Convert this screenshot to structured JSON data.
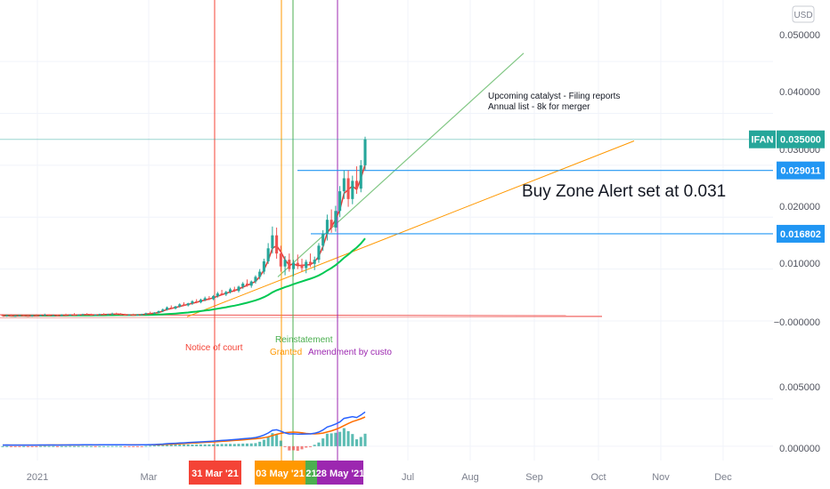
{
  "chart_data": {
    "type": "candlestick",
    "symbol": "IFAN",
    "currency": "USD",
    "ylim": [
      0,
      0.055
    ],
    "y_ticks": [
      "0.050000",
      "0.040000",
      "0.030000",
      "0.020000",
      "0.010000",
      "−0.000000"
    ],
    "x_ticks": [
      "2021",
      "Mar",
      "Jul",
      "Aug",
      "Sep",
      "Oct",
      "Nov",
      "Dec"
    ],
    "last_price": "0.035000",
    "price_lines": [
      {
        "label": "0.029011",
        "value": 0.029011
      },
      {
        "label": "0.016802",
        "value": 0.016802
      }
    ],
    "hidden_label": "0.030000",
    "event_flags": [
      {
        "label": "31 Mar '21",
        "color": "#f44336"
      },
      {
        "label": "03 May '21",
        "color": "#ff9800"
      },
      {
        "label": "21",
        "color": "#4caf50"
      },
      {
        "label": "28 May '21",
        "color": "#9c27b0"
      }
    ],
    "annotations": [
      {
        "text": "Notice of court",
        "color": "#f44336"
      },
      {
        "text": "Reinstatement",
        "color": "#4caf50"
      },
      {
        "text": "Granted",
        "color": "#ff9800"
      },
      {
        "text": "Amendment by custo",
        "color": "#9c27b0"
      }
    ],
    "note_lines": [
      "Upcoming catalyst - Filing reports",
      "Annual list - 8k for merger"
    ],
    "alert_text": "Buy Zone Alert set at 0.031",
    "candles": [
      [
        0.0011,
        0.0013,
        0.0009,
        0.001
      ],
      [
        0.001,
        0.0012,
        0.0008,
        0.0011
      ],
      [
        0.0011,
        0.0013,
        0.0009,
        0.0009
      ],
      [
        0.0009,
        0.0011,
        0.0008,
        0.001
      ],
      [
        0.001,
        0.0012,
        0.0009,
        0.0011
      ],
      [
        0.0011,
        0.0012,
        0.0009,
        0.001
      ],
      [
        0.001,
        0.0011,
        0.0008,
        0.0009
      ],
      [
        0.0009,
        0.0012,
        0.0008,
        0.0011
      ],
      [
        0.0011,
        0.0013,
        0.001,
        0.001
      ],
      [
        0.001,
        0.0012,
        0.0009,
        0.0011
      ],
      [
        0.0011,
        0.0014,
        0.001,
        0.0012
      ],
      [
        0.0012,
        0.0013,
        0.001,
        0.001
      ],
      [
        0.001,
        0.0012,
        0.0009,
        0.0011
      ],
      [
        0.0011,
        0.0012,
        0.0009,
        0.001
      ],
      [
        0.001,
        0.0013,
        0.0009,
        0.0012
      ],
      [
        0.0012,
        0.0014,
        0.001,
        0.0011
      ],
      [
        0.0011,
        0.0013,
        0.001,
        0.0012
      ],
      [
        0.0012,
        0.0015,
        0.0011,
        0.0011
      ],
      [
        0.0011,
        0.0013,
        0.001,
        0.0012
      ],
      [
        0.0012,
        0.0014,
        0.0011,
        0.0013
      ],
      [
        0.0013,
        0.0015,
        0.0011,
        0.0012
      ],
      [
        0.0012,
        0.0014,
        0.001,
        0.0011
      ],
      [
        0.0011,
        0.0013,
        0.001,
        0.0012
      ],
      [
        0.0012,
        0.0014,
        0.0011,
        0.0013
      ],
      [
        0.0013,
        0.0015,
        0.0012,
        0.0012
      ],
      [
        0.0012,
        0.0014,
        0.0011,
        0.0013
      ],
      [
        0.0013,
        0.0016,
        0.0012,
        0.0014
      ],
      [
        0.0014,
        0.0016,
        0.0012,
        0.0013
      ],
      [
        0.0013,
        0.0015,
        0.0012,
        0.0012
      ],
      [
        0.0012,
        0.0014,
        0.0011,
        0.0011
      ],
      [
        0.0011,
        0.0013,
        0.001,
        0.0012
      ],
      [
        0.0012,
        0.0014,
        0.0011,
        0.0011
      ],
      [
        0.0011,
        0.0013,
        0.001,
        0.0012
      ],
      [
        0.0012,
        0.0014,
        0.0011,
        0.0013
      ],
      [
        0.0013,
        0.0016,
        0.0012,
        0.0015
      ],
      [
        0.0015,
        0.0018,
        0.0013,
        0.0014
      ],
      [
        0.0014,
        0.0017,
        0.0013,
        0.0016
      ],
      [
        0.0016,
        0.002,
        0.0015,
        0.0019
      ],
      [
        0.0019,
        0.0024,
        0.0017,
        0.0022
      ],
      [
        0.0022,
        0.0028,
        0.002,
        0.0026
      ],
      [
        0.0026,
        0.003,
        0.0023,
        0.0024
      ],
      [
        0.0024,
        0.0029,
        0.0022,
        0.0028
      ],
      [
        0.0028,
        0.0034,
        0.0026,
        0.0032
      ],
      [
        0.0032,
        0.0036,
        0.0029,
        0.003
      ],
      [
        0.003,
        0.0035,
        0.0028,
        0.0034
      ],
      [
        0.0034,
        0.004,
        0.0031,
        0.0038
      ],
      [
        0.0038,
        0.0042,
        0.0034,
        0.0036
      ],
      [
        0.0036,
        0.0043,
        0.0034,
        0.0041
      ],
      [
        0.0041,
        0.0047,
        0.0038,
        0.0044
      ],
      [
        0.0044,
        0.0048,
        0.004,
        0.0042
      ],
      [
        0.0042,
        0.005,
        0.004,
        0.0048
      ],
      [
        0.0048,
        0.0056,
        0.0045,
        0.0053
      ],
      [
        0.0053,
        0.006,
        0.0049,
        0.0051
      ],
      [
        0.0051,
        0.0058,
        0.0048,
        0.0056
      ],
      [
        0.0056,
        0.0064,
        0.0053,
        0.0061
      ],
      [
        0.0061,
        0.0066,
        0.0056,
        0.0058
      ],
      [
        0.0058,
        0.0068,
        0.0055,
        0.0066
      ],
      [
        0.0066,
        0.0075,
        0.0062,
        0.0072
      ],
      [
        0.0072,
        0.008,
        0.0066,
        0.0068
      ],
      [
        0.0068,
        0.0078,
        0.0064,
        0.0076
      ],
      [
        0.0076,
        0.0088,
        0.0072,
        0.0085
      ],
      [
        0.0085,
        0.01,
        0.008,
        0.0095
      ],
      [
        0.0095,
        0.012,
        0.009,
        0.0115
      ],
      [
        0.0115,
        0.015,
        0.011,
        0.014
      ],
      [
        0.014,
        0.0182,
        0.013,
        0.0165
      ],
      [
        0.0165,
        0.018,
        0.012,
        0.013
      ],
      [
        0.013,
        0.0145,
        0.0095,
        0.0105
      ],
      [
        0.0105,
        0.0125,
        0.0088,
        0.0118
      ],
      [
        0.0118,
        0.013,
        0.0095,
        0.01
      ],
      [
        0.01,
        0.0118,
        0.0086,
        0.0112
      ],
      [
        0.0112,
        0.0128,
        0.01,
        0.0108
      ],
      [
        0.0108,
        0.012,
        0.0095,
        0.0102
      ],
      [
        0.0102,
        0.0118,
        0.0092,
        0.0114
      ],
      [
        0.0114,
        0.013,
        0.0104,
        0.011
      ],
      [
        0.011,
        0.0124,
        0.0098,
        0.0118
      ],
      [
        0.0118,
        0.015,
        0.0112,
        0.0145
      ],
      [
        0.0145,
        0.0175,
        0.0135,
        0.0168
      ],
      [
        0.0168,
        0.0205,
        0.0155,
        0.0195
      ],
      [
        0.0195,
        0.0215,
        0.017,
        0.018
      ],
      [
        0.018,
        0.0222,
        0.0172,
        0.0212
      ],
      [
        0.0212,
        0.026,
        0.02,
        0.025
      ],
      [
        0.025,
        0.029,
        0.0235,
        0.0275
      ],
      [
        0.0275,
        0.029,
        0.022,
        0.0235
      ],
      [
        0.0235,
        0.028,
        0.0225,
        0.027
      ],
      [
        0.027,
        0.0298,
        0.0245,
        0.0255
      ],
      [
        0.0255,
        0.031,
        0.0248,
        0.03
      ],
      [
        0.03,
        0.0355,
        0.029,
        0.035
      ]
    ],
    "indicator_ticks": [
      "0.005000",
      "0.000000"
    ],
    "indicator_ylim": [
      -0.0002,
      0.0062
    ]
  }
}
